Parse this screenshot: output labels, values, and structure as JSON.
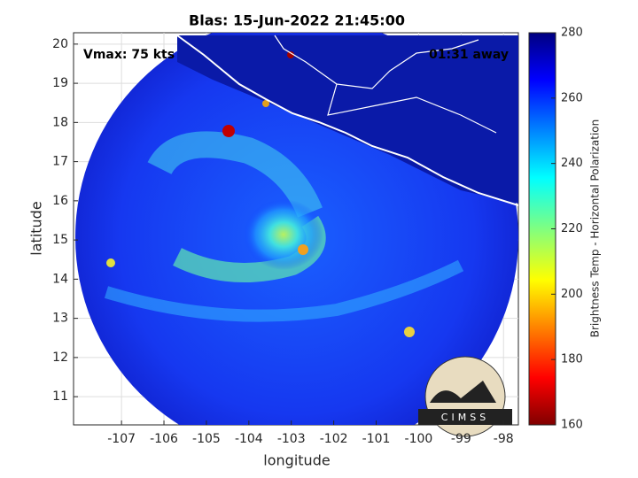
{
  "chart_data": {
    "type": "map",
    "title": "Blas: 15-Jun-2022 21:45:00",
    "annotations": [
      "Vmax: 75 kts",
      "01:31 away"
    ],
    "xlabel": "longitude",
    "ylabel": "latitude",
    "xlim": [
      -108.13,
      -97.65
    ],
    "ylim": [
      10.28,
      20.29
    ],
    "xticks": [
      -107,
      -106,
      -105,
      -104,
      -103,
      -102,
      -101,
      -100,
      -99,
      -98
    ],
    "yticks": [
      11,
      12,
      13,
      14,
      15,
      16,
      17,
      18,
      19,
      20
    ],
    "grid": true,
    "colorbar": {
      "label": "Brightness Temp - Horizontal Polarization",
      "lim": [
        160,
        280
      ],
      "ticks": [
        160,
        180,
        200,
        220,
        240,
        260,
        280
      ]
    },
    "logo": "CIMSS"
  }
}
